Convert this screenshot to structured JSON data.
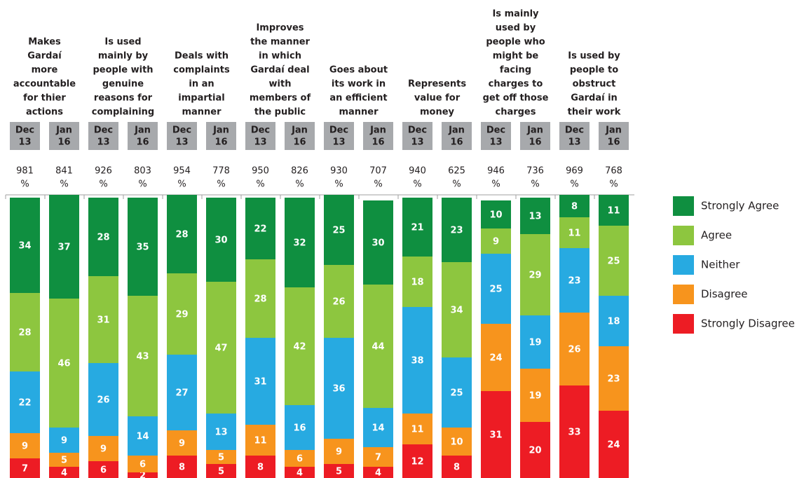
{
  "chart_data": {
    "type": "stacked_bar",
    "ylim": [
      0,
      100
    ],
    "groups": [
      {
        "title": [
          "Makes",
          "Gardaí",
          "more",
          "accountable",
          "for thier",
          "actions"
        ]
      },
      {
        "title": [
          "Is used",
          "mainly by",
          "people with",
          "genuine",
          "reasons for",
          "complaining"
        ]
      },
      {
        "title": [
          "Deals with",
          "complaints",
          "in an",
          "impartial",
          "manner"
        ]
      },
      {
        "title": [
          "Improves",
          "the manner",
          "in which",
          "Gardaí deal",
          "with",
          "members of",
          "the public"
        ]
      },
      {
        "title": [
          "Goes about",
          "its work in",
          "an efficient",
          "manner"
        ]
      },
      {
        "title": [
          "Represents",
          "value for",
          "money"
        ]
      },
      {
        "title": [
          "Is mainly",
          "used by",
          "people who",
          "might be",
          "facing",
          "charges to",
          "get off those",
          "charges"
        ]
      },
      {
        "title": [
          "Is used by",
          "people to",
          "obstruct",
          "Gardaí in",
          "their work"
        ]
      }
    ],
    "n_unit": "%",
    "bars": [
      {
        "period": [
          "Dec",
          "13"
        ],
        "n": 981
      },
      {
        "period": [
          "Jan",
          "16"
        ],
        "n": 841
      },
      {
        "period": [
          "Dec",
          "13"
        ],
        "n": 926
      },
      {
        "period": [
          "Jan",
          "16"
        ],
        "n": 803
      },
      {
        "period": [
          "Dec",
          "13"
        ],
        "n": 954
      },
      {
        "period": [
          "Jan",
          "16"
        ],
        "n": 778
      },
      {
        "period": [
          "Dec",
          "13"
        ],
        "n": 950
      },
      {
        "period": [
          "Jan",
          "16"
        ],
        "n": 826
      },
      {
        "period": [
          "Dec",
          "13"
        ],
        "n": 930
      },
      {
        "period": [
          "Jan",
          "16"
        ],
        "n": 707
      },
      {
        "period": [
          "Dec",
          "13"
        ],
        "n": 940
      },
      {
        "period": [
          "Jan",
          "16"
        ],
        "n": 625
      },
      {
        "period": [
          "Dec",
          "13"
        ],
        "n": 946
      },
      {
        "period": [
          "Jan",
          "16"
        ],
        "n": 736
      },
      {
        "period": [
          "Dec",
          "13"
        ],
        "n": 969
      },
      {
        "period": [
          "Jan",
          "16"
        ],
        "n": 768
      }
    ],
    "series": [
      {
        "name": "Strongly Agree",
        "color": "#0f8f40",
        "values": [
          34,
          37,
          28,
          35,
          28,
          30,
          22,
          32,
          25,
          30,
          21,
          23,
          10,
          13,
          8,
          11
        ]
      },
      {
        "name": "Agree",
        "color": "#8dc63f",
        "values": [
          28,
          46,
          31,
          43,
          29,
          47,
          28,
          42,
          26,
          44,
          18,
          34,
          9,
          29,
          11,
          25
        ]
      },
      {
        "name": "Neither",
        "color": "#27aae1",
        "values": [
          22,
          9,
          26,
          14,
          27,
          13,
          31,
          16,
          36,
          14,
          38,
          25,
          25,
          19,
          23,
          18
        ]
      },
      {
        "name": "Disagree",
        "color": "#f7941d",
        "values": [
          9,
          5,
          9,
          6,
          9,
          5,
          11,
          6,
          9,
          7,
          11,
          10,
          24,
          19,
          26,
          23
        ]
      },
      {
        "name": "Strongly Disagree",
        "color": "#ed1c24",
        "values": [
          7,
          4,
          6,
          2,
          8,
          5,
          8,
          4,
          5,
          4,
          12,
          8,
          31,
          20,
          33,
          24
        ]
      }
    ]
  }
}
